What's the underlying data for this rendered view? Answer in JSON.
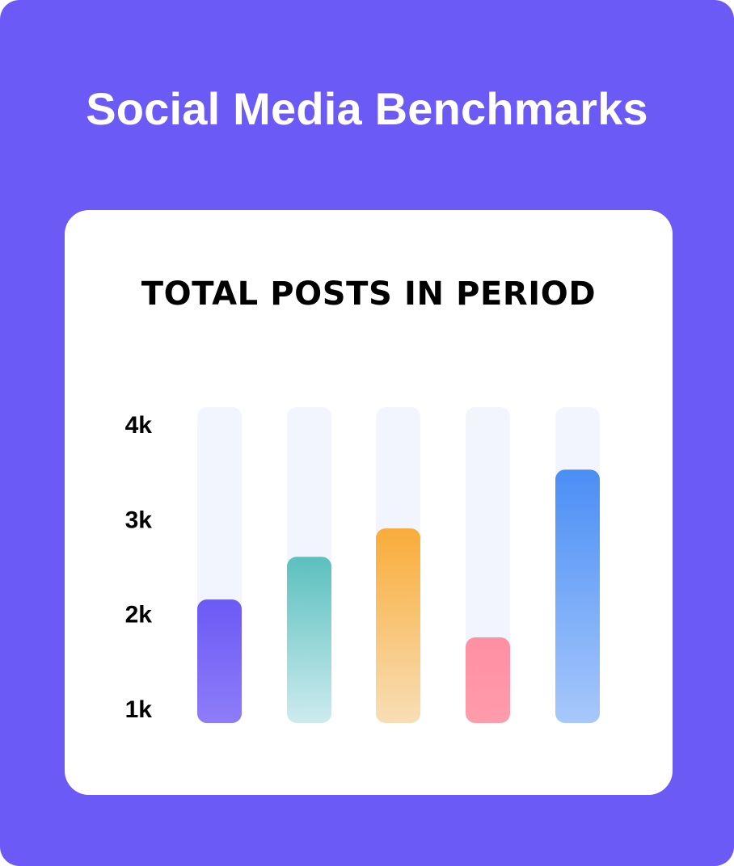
{
  "page": {
    "title": "Social Media Benchmarks",
    "background_color": "#6C5AF6"
  },
  "chart_data": {
    "type": "bar",
    "title": "TOTAL POSTS IN PERIOD",
    "xlabel": "",
    "ylabel": "",
    "y_tick_labels": [
      "4k",
      "3k",
      "2k",
      "1k"
    ],
    "y_ticks": [
      4000,
      3000,
      2000,
      1000
    ],
    "ylim": [
      1000,
      4000
    ],
    "track_max": 4100,
    "values": [
      2150,
      2600,
      2900,
      1750,
      3520
    ],
    "bar_colors": [
      {
        "top": "#6C5AF6",
        "bottom": "#8E7CF8"
      },
      {
        "top": "#5BC0BE",
        "bottom": "#CDEBEF"
      },
      {
        "top": "#F9AC39",
        "bottom": "#F8DEB6"
      },
      {
        "top": "#FF8FA3",
        "bottom": "#FF9CAC"
      },
      {
        "top": "#4A8EF5",
        "bottom": "#A7C8FB"
      }
    ],
    "track_color": "#F2F5FE",
    "grid": false,
    "legend": "none"
  }
}
